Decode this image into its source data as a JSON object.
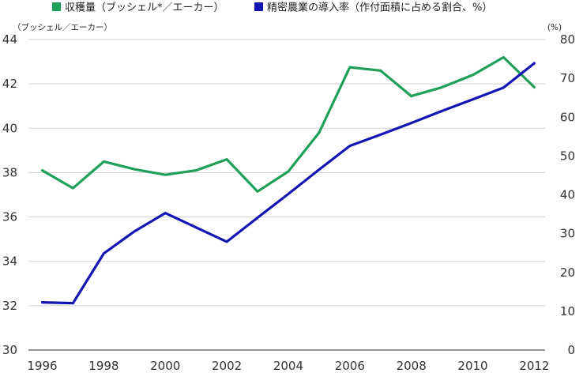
{
  "chart_data": {
    "type": "line",
    "title": "",
    "legend": {
      "placement": "top-left",
      "items": [
        {
          "label": "収穫量（ブッシェル*／エーカー）",
          "color": "#1ea05a"
        },
        {
          "label": "精密農業の導入率（作付面積に占める割合、%）",
          "color": "#1414b4"
        }
      ]
    },
    "left_axis": {
      "unit_label": "（ブッシェル／エーカー）",
      "ylim": [
        30,
        44
      ],
      "ticks": [
        30,
        32,
        34,
        36,
        38,
        40,
        42,
        44
      ]
    },
    "right_axis": {
      "unit_label": "(%)",
      "ylim": [
        0,
        80
      ],
      "ticks": [
        0,
        10,
        20,
        30,
        40,
        50,
        60,
        70,
        80
      ]
    },
    "x_axis": {
      "xlim": [
        1996,
        2012
      ],
      "ticks": [
        1996,
        1998,
        2000,
        2002,
        2004,
        2006,
        2008,
        2010,
        2012
      ]
    },
    "grid": true,
    "series": [
      {
        "axis": "left",
        "color": "#1ea05a",
        "x": [
          1996,
          1997,
          1998,
          1999,
          2000,
          2001,
          2002,
          2003,
          2004,
          2005,
          2006,
          2007,
          2008,
          2009,
          2010,
          2011,
          2012
        ],
        "values": [
          38.1,
          37.3,
          38.5,
          38.15,
          37.9,
          38.1,
          38.6,
          37.15,
          38.05,
          39.8,
          42.75,
          42.6,
          41.45,
          41.85,
          42.4,
          43.2,
          41.85
        ]
      },
      {
        "axis": "right",
        "color": "#1414b4",
        "x": [
          1996,
          1997,
          1998,
          1999,
          2000,
          2001,
          2002,
          2003,
          2004,
          2005,
          2006,
          2007,
          2008,
          2009,
          2010,
          2011,
          2012
        ],
        "values": [
          12.3,
          12.1,
          24.9,
          30.6,
          35.3,
          31.6,
          27.9,
          34.1,
          40.2,
          46.5,
          52.6,
          55.5,
          58.5,
          61.6,
          64.6,
          67.6,
          73.9
        ]
      }
    ]
  }
}
